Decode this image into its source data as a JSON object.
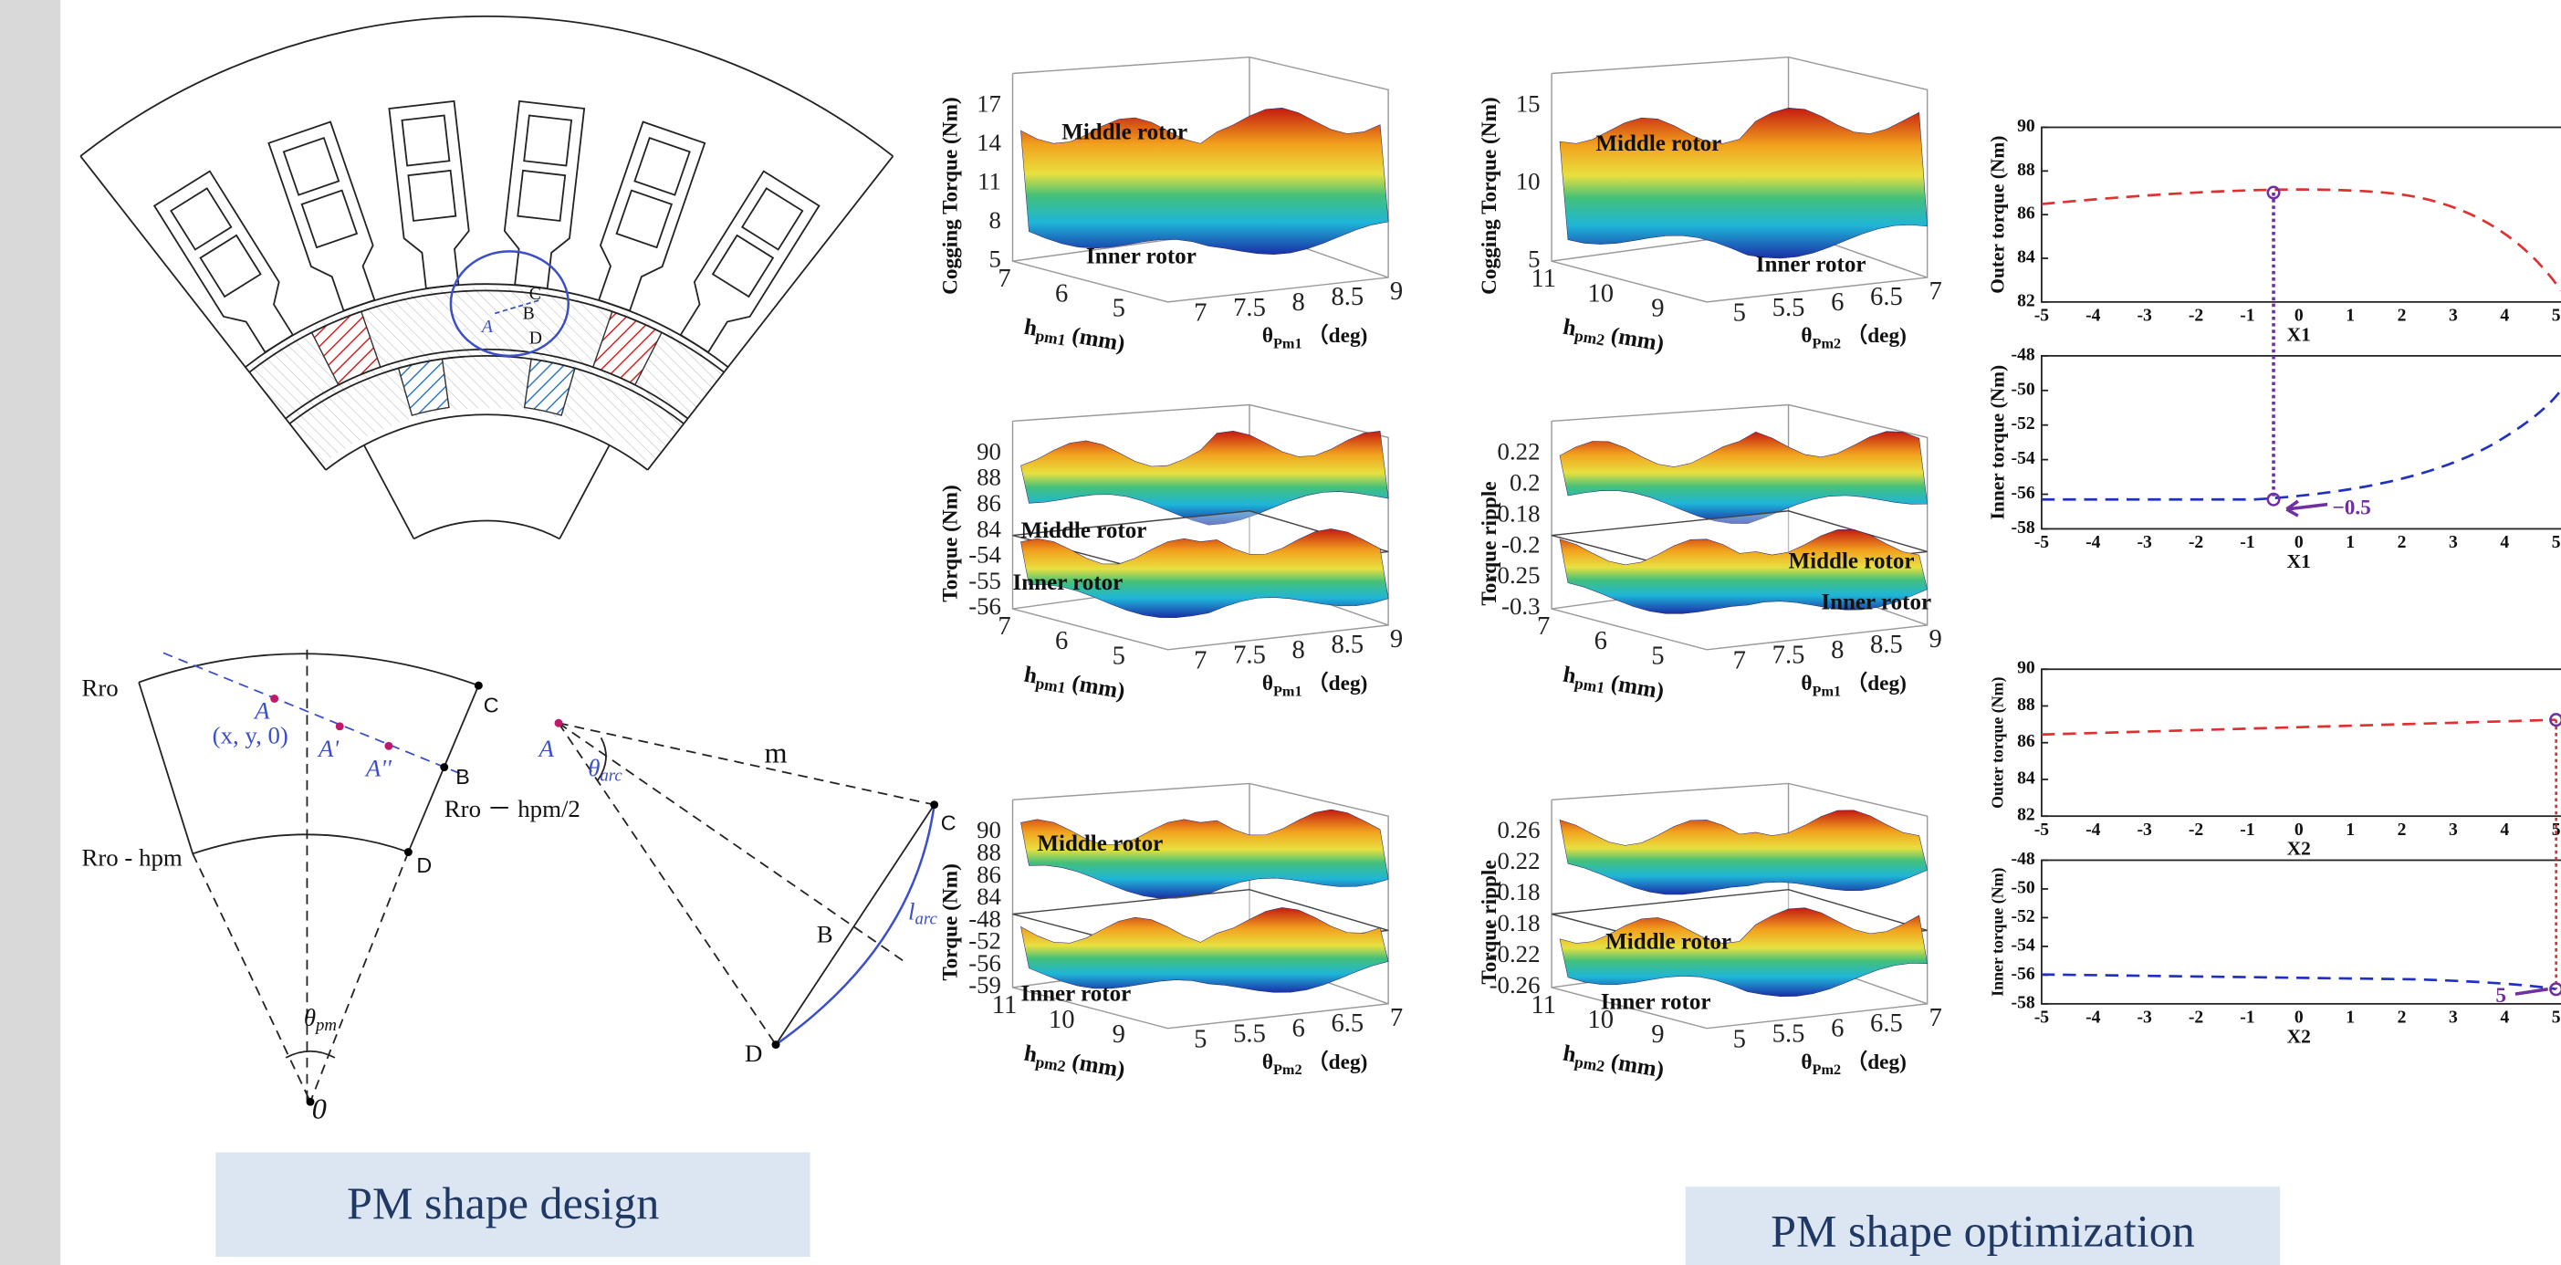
{
  "design": {
    "motor_labels": [
      "C",
      "B",
      "A",
      "D"
    ],
    "sketch": {
      "Rro": "Rro",
      "A": "A",
      "xy": "(x, y, 0)",
      "A1": "A'",
      "A2": "A''",
      "B": "B",
      "C": "C",
      "D": "D",
      "Rro_hpm": "Rro - hpm",
      "Rro_half": "Rro － hpm/2",
      "theta_pm": {
        "base": "θ",
        "sub": "pm"
      },
      "O": "0"
    },
    "arc": {
      "A": "A",
      "theta_arc": {
        "base": "θ",
        "sub": "arc"
      },
      "m": "m",
      "C": "C",
      "B": "B",
      "D": "D",
      "l_arc": {
        "base": "l",
        "sub": "arc"
      }
    },
    "caption": "PM shape design"
  },
  "surfaces": [
    {
      "zlabel": "Cogging Torque (Nm)",
      "zticks": [
        "17",
        "14",
        "11",
        "8",
        "5"
      ],
      "hticks": [
        "7",
        "6",
        "5"
      ],
      "hlabel": {
        "base": "h",
        "sub": "pm1",
        "tail": " (mm)"
      },
      "tticks": [
        "7",
        "7.5",
        "8",
        "8.5",
        "9"
      ],
      "tlabel": {
        "base": "θ",
        "sub": "Pm1",
        "tail": " （deg)"
      },
      "top": "Middle rotor",
      "bottom": "Inner rotor"
    },
    {
      "zlabel": "Cogging Torque (Nm)",
      "zticks": [
        "15",
        "10",
        "5"
      ],
      "hticks": [
        "11",
        "10",
        "9"
      ],
      "hlabel": {
        "base": "h",
        "sub": "pm2",
        "tail": " (mm)"
      },
      "tticks": [
        "5",
        "5.5",
        "6",
        "6.5",
        "7"
      ],
      "tlabel": {
        "base": "θ",
        "sub": "Pm2",
        "tail": " （deg)"
      },
      "top": "Middle rotor",
      "bottom": "Inner rotor"
    },
    {
      "zlabel": "Torque (Nm)",
      "zticks": [
        "90",
        "88",
        "86",
        "84",
        "-54",
        "-55",
        "-56"
      ],
      "hticks": [
        "7",
        "6",
        "5"
      ],
      "hlabel": {
        "base": "h",
        "sub": "pm1",
        "tail": " (mm)"
      },
      "tticks": [
        "7",
        "7.5",
        "8",
        "8.5",
        "9"
      ],
      "tlabel": {
        "base": "θ",
        "sub": "Pm1",
        "tail": " （deg)"
      },
      "top": "Middle rotor",
      "bottom": "Inner rotor"
    },
    {
      "zlabel": "Torque ripple",
      "zticks": [
        "0.22",
        "0.2",
        "0.18",
        "-0.2",
        "-0.25",
        "-0.3"
      ],
      "hticks": [
        "7",
        "6",
        "5"
      ],
      "hlabel": {
        "base": "h",
        "sub": "pm1",
        "tail": " (mm)"
      },
      "tticks": [
        "7",
        "7.5",
        "8",
        "8.5",
        "9"
      ],
      "tlabel": {
        "base": "θ",
        "sub": "Pm1",
        "tail": " （deg)"
      },
      "top": "Middle rotor",
      "bottom": "Inner rotor"
    },
    {
      "zlabel": "Torque (Nm)",
      "zticks": [
        "90",
        "88",
        "86",
        "84",
        "-48",
        "-52",
        "-56",
        "-59"
      ],
      "hticks": [
        "11",
        "10",
        "9"
      ],
      "hlabel": {
        "base": "h",
        "sub": "pm2",
        "tail": " (mm)"
      },
      "tticks": [
        "5",
        "5.5",
        "6",
        "6.5",
        "7"
      ],
      "tlabel": {
        "base": "θ",
        "sub": "Pm2",
        "tail": " （deg)"
      },
      "top": "Middle rotor",
      "bottom": "Inner rotor"
    },
    {
      "zlabel": "Torque ripple",
      "zticks": [
        "0.26",
        "0.22",
        "0.18",
        "-0.18",
        "-0.22",
        "-0.26"
      ],
      "hticks": [
        "11",
        "10",
        "9"
      ],
      "hlabel": {
        "base": "h",
        "sub": "pm2",
        "tail": " (mm)"
      },
      "tticks": [
        "5",
        "5.5",
        "6",
        "6.5",
        "7"
      ],
      "tlabel": {
        "base": "θ",
        "sub": "Pm2",
        "tail": " （deg)"
      },
      "top": "Middle rotor",
      "bottom": "Inner rotor"
    }
  ],
  "curves": [
    {
      "ylabel": "Outer torque (Nm)",
      "yticks": [
        "90",
        "88",
        "86",
        "84",
        "82"
      ],
      "xticks": [
        "-5",
        "-4",
        "-3",
        "-2",
        "-1",
        "0",
        "1",
        "2",
        "3",
        "4",
        "5"
      ],
      "xlabel": "X1"
    },
    {
      "ylabel": "Inner torque (Nm)",
      "yticks": [
        "-48",
        "-50",
        "-52",
        "-54",
        "-56",
        "-58"
      ],
      "xticks": [
        "-5",
        "-4",
        "-3",
        "-2",
        "-1",
        "0",
        "1",
        "2",
        "3",
        "4",
        "5"
      ],
      "xlabel": "X1",
      "annotation": "−0.5"
    },
    {
      "ylabel": "Outer torque (Nm)",
      "yticks": [
        "90",
        "88",
        "86",
        "84",
        "82"
      ],
      "xticks": [
        "-5",
        "-4",
        "-3",
        "-2",
        "-1",
        "0",
        "1",
        "2",
        "3",
        "4",
        "5"
      ],
      "xlabel": "X2"
    },
    {
      "ylabel": "Inner torque (Nm)",
      "yticks": [
        "-48",
        "-50",
        "-52",
        "-54",
        "-56",
        "-58"
      ],
      "xticks": [
        "-5",
        "-4",
        "-3",
        "-2",
        "-1",
        "0",
        "1",
        "2",
        "3",
        "4",
        "5"
      ],
      "xlabel": "X2",
      "annotation": "5"
    }
  ],
  "caption": "PM shape optimization"
}
